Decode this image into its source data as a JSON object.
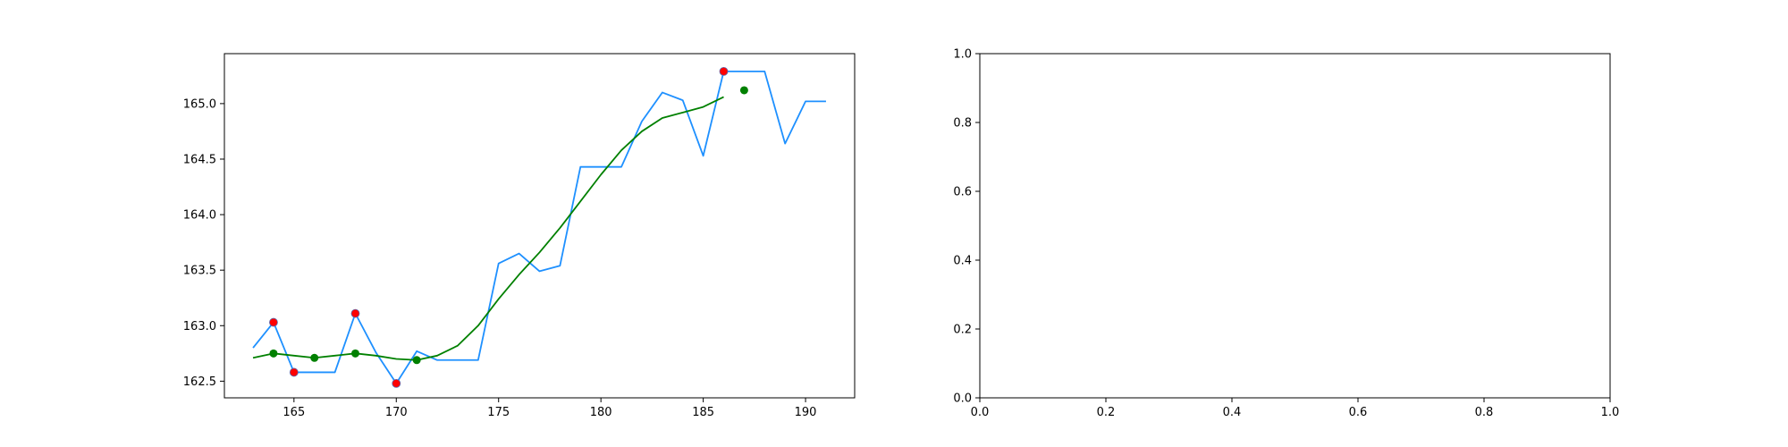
{
  "colors": {
    "price_line": "#1E90FF",
    "smooth_line": "#008000",
    "extrema_points": "#FF0000",
    "smooth_points": "#008000",
    "extrema_edge": "#5B6CB0",
    "axes": "#000000"
  },
  "chart_data": [
    {
      "type": "line",
      "title": "",
      "xlabel": "",
      "ylabel": "",
      "xlim": [
        161.6,
        192.4
      ],
      "ylim": [
        162.35,
        165.45
      ],
      "xticks": [
        165,
        170,
        175,
        180,
        185,
        190
      ],
      "yticks": [
        162.5,
        163.0,
        163.5,
        164.0,
        164.5,
        165.0
      ],
      "xtick_labels": [
        "165",
        "170",
        "175",
        "180",
        "185",
        "190"
      ],
      "ytick_labels": [
        "162.5",
        "163.0",
        "163.5",
        "164.0",
        "164.5",
        "165.0"
      ],
      "grid": false,
      "legend": "none",
      "series": [
        {
          "kind": "line",
          "color": "#1E90FF",
          "x": [
            163,
            164,
            165,
            166,
            167,
            168,
            169,
            170,
            171,
            172,
            173,
            174,
            175,
            176,
            177,
            178,
            179,
            180,
            181,
            182,
            183,
            184,
            185,
            186,
            187,
            188,
            189,
            190,
            191
          ],
          "y": [
            162.8,
            163.03,
            162.58,
            162.58,
            162.58,
            163.11,
            162.76,
            162.48,
            162.77,
            162.69,
            162.69,
            162.69,
            163.56,
            163.65,
            163.49,
            163.54,
            164.43,
            164.43,
            164.43,
            164.84,
            165.1,
            165.03,
            164.53,
            165.29,
            165.29,
            165.29,
            164.64,
            165.02,
            165.02
          ]
        },
        {
          "kind": "line",
          "color": "#008000",
          "x": [
            163,
            164,
            165,
            166,
            167,
            168,
            169,
            170,
            171,
            172,
            173,
            174,
            175,
            176,
            177,
            178,
            179,
            180,
            181,
            182,
            183,
            184,
            185,
            186
          ],
          "y": [
            162.71,
            162.75,
            162.73,
            162.71,
            162.73,
            162.75,
            162.73,
            162.7,
            162.69,
            162.73,
            162.82,
            163.0,
            163.24,
            163.46,
            163.66,
            163.88,
            164.12,
            164.36,
            164.58,
            164.75,
            164.87,
            164.92,
            164.97,
            165.06
          ]
        },
        {
          "kind": "scatter",
          "color": "#FF0000",
          "x": [
            164,
            165,
            168,
            170,
            186
          ],
          "y": [
            163.03,
            162.58,
            163.11,
            162.48,
            165.29
          ]
        },
        {
          "kind": "scatter",
          "color": "#008000",
          "x": [
            164,
            166,
            168,
            171,
            187
          ],
          "y": [
            162.75,
            162.71,
            162.75,
            162.69,
            165.12
          ]
        }
      ]
    },
    {
      "type": "line",
      "title": "",
      "xlabel": "",
      "ylabel": "",
      "xlim": [
        0.0,
        1.0
      ],
      "ylim": [
        0.0,
        1.0
      ],
      "xticks": [
        0.0,
        0.2,
        0.4,
        0.6,
        0.8,
        1.0
      ],
      "yticks": [
        0.0,
        0.2,
        0.4,
        0.6,
        0.8,
        1.0
      ],
      "xtick_labels": [
        "0.0",
        "0.2",
        "0.4",
        "0.6",
        "0.8",
        "1.0"
      ],
      "ytick_labels": [
        "0.0",
        "0.2",
        "0.4",
        "0.6",
        "0.8",
        "1.0"
      ],
      "grid": false,
      "legend": "none",
      "series": []
    }
  ]
}
